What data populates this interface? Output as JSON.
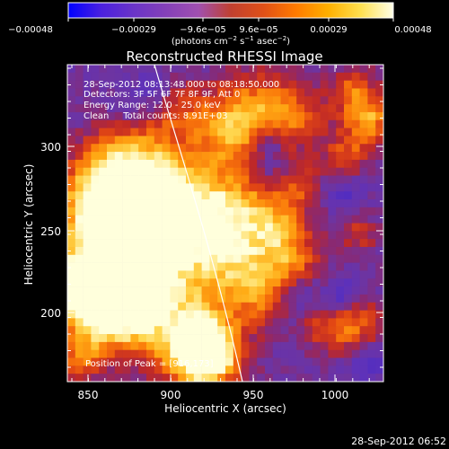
{
  "colorbar": {
    "tick_labels": [
      "−0.00048",
      "−0.00029",
      "−9.6e−05",
      "9.6e−05",
      "0.00029",
      "0.00048"
    ],
    "unit_base": "(photons cm",
    "unit_exp1": "−2",
    "unit_mid1": " s",
    "unit_exp2": "−1",
    "unit_mid2": " asec",
    "unit_exp3": "−2",
    "unit_end": ")",
    "palette": [
      "#0000ff",
      "#4a20e0",
      "#6a34c8",
      "#8440b8",
      "#a050b0",
      "#c04030",
      "#e05018",
      "#ff7a00",
      "#ffb000",
      "#ffe050",
      "#ffffe8"
    ]
  },
  "plot": {
    "title": "Reconstructed RHESSI Image",
    "xlabel": "Heliocentric X (arcsec)",
    "ylabel": "Heliocentric Y (arcsec)",
    "xticks": [
      "850",
      "900",
      "950",
      "1000"
    ],
    "yticks": [
      "300",
      "250",
      "200"
    ],
    "x_range": [
      840,
      1030
    ],
    "y_range": [
      155,
      335
    ],
    "info_lines": [
      "28-Sep-2012 08:13:48.000 to 08:18:50.000",
      "Detectors: 3F 5F 6F 7F 8F 9F, Att 0",
      "Energy Range: 12.0 - 25.0 keV",
      "Clean     Total counts: 8.91E+03"
    ],
    "peak_label": "Position of Peak = [916,173]",
    "limb_color": "#ffffff"
  },
  "footer": {
    "timestamp": "28-Sep-2012 06:52"
  }
}
